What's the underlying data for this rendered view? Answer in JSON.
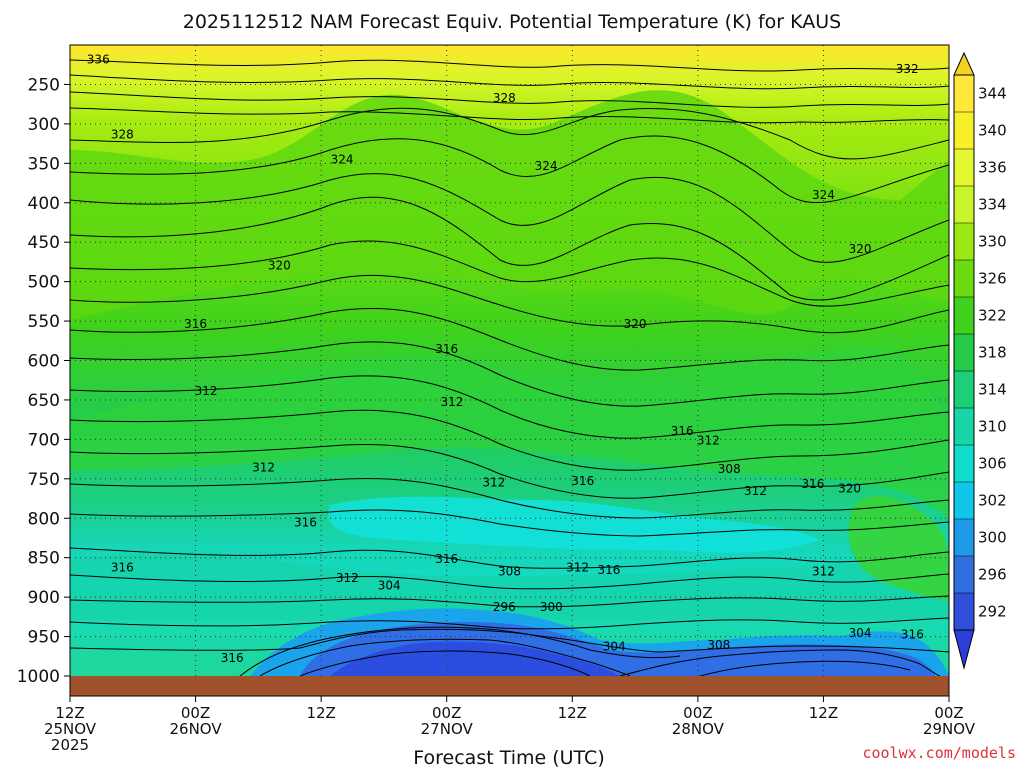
{
  "chart_data": {
    "type": "heatmap",
    "title": "2025112512 NAM Forecast Equiv. Potential Temperature (K) for KAUS",
    "xlabel": "Forecast Time (UTC)",
    "ylabel": "",
    "y_axis_units": "hPa (pressure, inverted)",
    "ylim": [
      1000,
      200
    ],
    "y_ticks": [
      "250",
      "300",
      "350",
      "400",
      "450",
      "500",
      "550",
      "600",
      "650",
      "700",
      "750",
      "800",
      "850",
      "900",
      "950",
      "1000"
    ],
    "y_tick_values": [
      250,
      300,
      350,
      400,
      450,
      500,
      550,
      600,
      650,
      700,
      750,
      800,
      850,
      900,
      950,
      1000
    ],
    "x_ticks": [
      {
        "hour": "12Z",
        "date": "25NOV",
        "year": "2025"
      },
      {
        "hour": "00Z",
        "date": "26NOV",
        "year": ""
      },
      {
        "hour": "12Z",
        "date": "",
        "year": ""
      },
      {
        "hour": "00Z",
        "date": "27NOV",
        "year": ""
      },
      {
        "hour": "12Z",
        "date": "",
        "year": ""
      },
      {
        "hour": "00Z",
        "date": "28NOV",
        "year": ""
      },
      {
        "hour": "12Z",
        "date": "",
        "year": ""
      },
      {
        "hour": "00Z",
        "date": "29NOV",
        "year": ""
      }
    ],
    "x_hours": [
      0,
      12,
      24,
      36,
      48,
      60,
      72,
      84
    ],
    "x_range_hours": [
      0,
      84
    ],
    "grid": true,
    "colorbar": {
      "labels": [
        "344",
        "340",
        "336",
        "334",
        "330",
        "326",
        "322",
        "318",
        "314",
        "310",
        "306",
        "302",
        "300",
        "296",
        "292"
      ],
      "values": [
        344,
        340,
        336,
        334,
        330,
        326,
        322,
        318,
        314,
        310,
        306,
        302,
        300,
        296,
        292
      ],
      "colors": [
        "#ffe83a",
        "#f7f02a",
        "#e4f832",
        "#c8f52a",
        "#9ee815",
        "#6ddb12",
        "#3fd21c",
        "#25cc48",
        "#1ccf78",
        "#18d6a8",
        "#10dccc",
        "#10c6ea",
        "#1f9ae8",
        "#2f6fe0",
        "#2f4fd8"
      ],
      "placement": "right"
    },
    "contour_labels": [
      {
        "text": "336",
        "hour": 2.7,
        "p": 221
      },
      {
        "text": "332",
        "hour": 80,
        "p": 233
      },
      {
        "text": "328",
        "hour": 5,
        "p": 316
      },
      {
        "text": "328",
        "hour": 41.5,
        "p": 270
      },
      {
        "text": "324",
        "hour": 26,
        "p": 348
      },
      {
        "text": "324",
        "hour": 45.5,
        "p": 356
      },
      {
        "text": "324",
        "hour": 72,
        "p": 393
      },
      {
        "text": "320",
        "hour": 20,
        "p": 482
      },
      {
        "text": "320",
        "hour": 75.5,
        "p": 461
      },
      {
        "text": "320",
        "hour": 54,
        "p": 556
      },
      {
        "text": "316",
        "hour": 12,
        "p": 556
      },
      {
        "text": "316",
        "hour": 36,
        "p": 588
      },
      {
        "text": "316",
        "hour": 58.5,
        "p": 692
      },
      {
        "text": "312",
        "hour": 13,
        "p": 641
      },
      {
        "text": "312",
        "hour": 36.5,
        "p": 655
      },
      {
        "text": "312",
        "hour": 61,
        "p": 704
      },
      {
        "text": "312",
        "hour": 18.5,
        "p": 738
      },
      {
        "text": "312",
        "hour": 40.5,
        "p": 757
      },
      {
        "text": "312",
        "hour": 65.5,
        "p": 768
      },
      {
        "text": "312",
        "hour": 26.5,
        "p": 878
      },
      {
        "text": "312",
        "hour": 48.5,
        "p": 865
      },
      {
        "text": "312",
        "hour": 72,
        "p": 870
      },
      {
        "text": "308",
        "hour": 63,
        "p": 740
      },
      {
        "text": "308",
        "hour": 42,
        "p": 870
      },
      {
        "text": "308",
        "hour": 62,
        "p": 963
      },
      {
        "text": "316",
        "hour": 49,
        "p": 755
      },
      {
        "text": "316",
        "hour": 71,
        "p": 759
      },
      {
        "text": "320",
        "hour": 74.5,
        "p": 765
      },
      {
        "text": "316",
        "hour": 22.5,
        "p": 808
      },
      {
        "text": "316",
        "hour": 36,
        "p": 854
      },
      {
        "text": "316",
        "hour": 51.5,
        "p": 868
      },
      {
        "text": "316",
        "hour": 5,
        "p": 865
      },
      {
        "text": "316",
        "hour": 15.5,
        "p": 980
      },
      {
        "text": "316",
        "hour": 80.5,
        "p": 950
      },
      {
        "text": "304",
        "hour": 30.5,
        "p": 888
      },
      {
        "text": "304",
        "hour": 52,
        "p": 965
      },
      {
        "text": "304",
        "hour": 75.5,
        "p": 948
      },
      {
        "text": "300",
        "hour": 46,
        "p": 915
      },
      {
        "text": "296",
        "hour": 41.5,
        "p": 915
      }
    ]
  },
  "xlabel_text": "Forecast Time (UTC)",
  "credit": "coolwx.com/models",
  "colors": {
    "ground": "#a0522d",
    "contour": "#000000",
    "background": "#ffffff"
  }
}
